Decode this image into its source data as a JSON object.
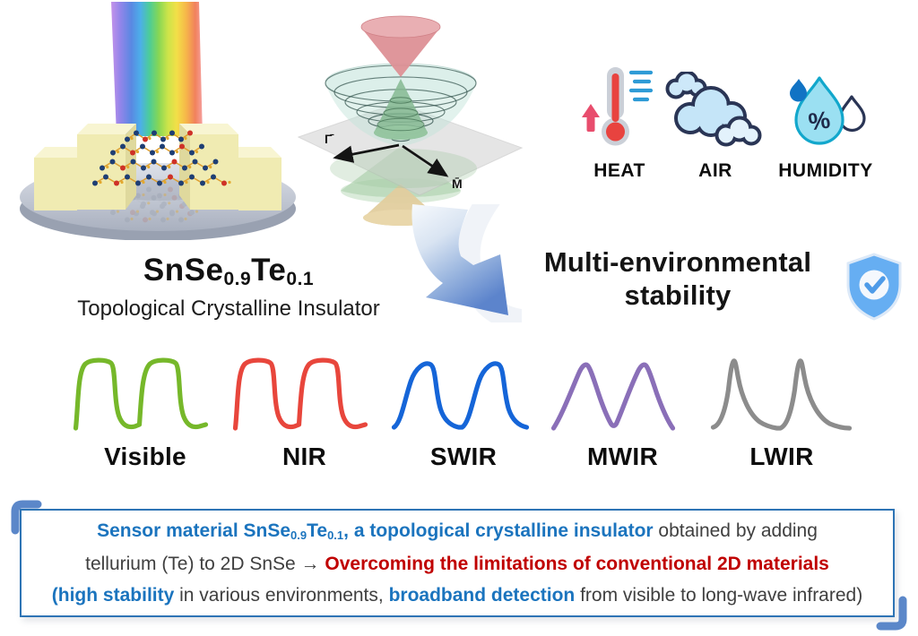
{
  "material": {
    "formula": [
      {
        "t": "SnSe"
      },
      {
        "t": "0.9",
        "sub": true
      },
      {
        "t": "Te"
      },
      {
        "t": "0.1",
        "sub": true
      }
    ],
    "subtitle": "Topological Crystalline Insulator"
  },
  "dirac": {
    "axis_labels": {
      "left": "Γ̄",
      "right": "M̄"
    }
  },
  "environment": {
    "items": [
      {
        "label": "HEAT",
        "icon": "thermometer-rising-icon"
      },
      {
        "label": "AIR",
        "icon": "clouds-icon"
      },
      {
        "label": "HUMIDITY",
        "icon": "water-drops-percent-icon"
      }
    ]
  },
  "stability": {
    "line1": "Multi-environmental",
    "line2": "stability",
    "icon": "shield-check-icon"
  },
  "bands": [
    {
      "label": "Visible",
      "color": "#76B82A",
      "waveform": "square"
    },
    {
      "label": "NIR",
      "color": "#E8463C",
      "waveform": "square"
    },
    {
      "label": "SWIR",
      "color": "#1565D8",
      "waveform": "rounded-asymmetric"
    },
    {
      "label": "MWIR",
      "color": "#8A6FB8",
      "waveform": "triangle"
    },
    {
      "label": "LWIR",
      "color": "#8C8C8C",
      "waveform": "spike-decay"
    }
  ],
  "summary": {
    "lines": [
      {
        "segments": [
          {
            "t": "Sensor material SnSe",
            "color": "blue",
            "bold": true
          },
          {
            "t": "0.9",
            "color": "blue",
            "bold": true,
            "sub": true
          },
          {
            "t": "Te",
            "color": "blue",
            "bold": true
          },
          {
            "t": "0.1",
            "color": "blue",
            "bold": true,
            "sub": true
          },
          {
            "t": ", a topological crystalline insulator",
            "color": "blue",
            "bold": true
          },
          {
            "t": " obtained by adding",
            "color": "dark"
          }
        ]
      },
      {
        "segments": [
          {
            "t": "tellurium (Te) to 2D SnSe → ",
            "color": "dark"
          },
          {
            "t": "Overcoming the limitations of conventional 2D materials",
            "color": "red",
            "bold": true
          }
        ]
      },
      {
        "segments": [
          {
            "t": "(high stability",
            "color": "blue",
            "bold": true
          },
          {
            "t": " in various environments, ",
            "color": "dark"
          },
          {
            "t": "broadband detection",
            "color": "blue",
            "bold": true
          },
          {
            "t": " from visible to long-wave infrared)",
            "color": "dark"
          }
        ]
      }
    ]
  },
  "colors": {
    "box_border_blue": "#2E74B5",
    "text_blue": "#1B74BE",
    "text_red": "#C00000",
    "text_dark": "#3F3F3F",
    "shield_blue": "#66AEF2",
    "arrow_blue": "#5C84CC"
  }
}
